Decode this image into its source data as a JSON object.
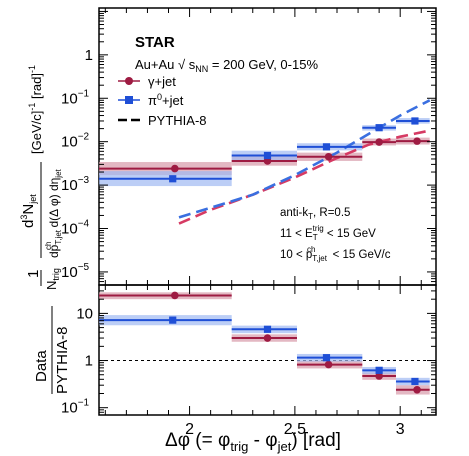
{
  "chart_data": [
    {
      "panel": "main",
      "type": "scatter",
      "experiment": "STAR",
      "system_line": "Au+Au √ s_NN = 200 GeV, 0-15%",
      "ylabel": "(1/N_trig) d³N_jet / (dp^ch_T,jet d(Δφ) dη_jet) [(GeV/c)⁻¹ [rad]⁻¹]",
      "yscale": "log",
      "ylim": [
        5e-06,
        12
      ],
      "xlim": [
        1.57,
        3.17
      ],
      "y_ticks": [
        {
          "v": 1,
          "label": "1"
        },
        {
          "v": 0.1,
          "label": "10",
          "exp": "−1"
        },
        {
          "v": 0.01,
          "label": "10",
          "exp": "−2"
        },
        {
          "v": 0.001,
          "label": "10",
          "exp": "−3"
        },
        {
          "v": 0.0001,
          "label": "10",
          "exp": "−4"
        },
        {
          "v": 1e-05,
          "label": "10",
          "exp": "−5"
        }
      ],
      "legend": [
        {
          "key": "gamma",
          "label": "γ+jet"
        },
        {
          "key": "pi0",
          "label": "π⁰+jet"
        },
        {
          "key": "pythia",
          "label": "PYTHIA-8"
        }
      ],
      "cuts": [
        "anti-k_T, R=0.5",
        "11 < E^trig_T < 15 GeV",
        "10 < p^ch_T,jet < 15 GeV/c"
      ],
      "series": [
        {
          "name": "γ+jet",
          "key": "gamma",
          "color": "#9e1b42",
          "band": "#d79aaa",
          "points": [
            {
              "x": 1.93,
              "xlo": 1.57,
              "xhi": 2.2,
              "y": 0.0024,
              "ylo": 0.0017,
              "yhi": 0.0034
            },
            {
              "x": 2.37,
              "xlo": 2.2,
              "xhi": 2.51,
              "y": 0.0036,
              "ylo": 0.0028,
              "yhi": 0.0047
            },
            {
              "x": 2.66,
              "xlo": 2.51,
              "xhi": 2.82,
              "y": 0.0045,
              "ylo": 0.0036,
              "yhi": 0.0056
            },
            {
              "x": 2.9,
              "xlo": 2.82,
              "xhi": 2.98,
              "y": 0.0098,
              "ylo": 0.0082,
              "yhi": 0.0118
            },
            {
              "x": 3.08,
              "xlo": 2.98,
              "xhi": 3.14,
              "y": 0.0103,
              "ylo": 0.0086,
              "yhi": 0.0124
            }
          ]
        },
        {
          "name": "π⁰+jet",
          "key": "pi0",
          "color": "#1f4fd6",
          "band": "#9fb9f2",
          "points": [
            {
              "x": 1.92,
              "xlo": 1.57,
              "xhi": 2.2,
              "y": 0.0014,
              "ylo": 0.00095,
              "yhi": 0.0021
            },
            {
              "x": 2.37,
              "xlo": 2.2,
              "xhi": 2.51,
              "y": 0.0048,
              "ylo": 0.0037,
              "yhi": 0.0062
            },
            {
              "x": 2.65,
              "xlo": 2.51,
              "xhi": 2.82,
              "y": 0.0076,
              "ylo": 0.0063,
              "yhi": 0.0092
            },
            {
              "x": 2.9,
              "xlo": 2.82,
              "xhi": 2.98,
              "y": 0.021,
              "ylo": 0.018,
              "yhi": 0.024
            },
            {
              "x": 3.07,
              "xlo": 2.98,
              "xhi": 3.14,
              "y": 0.03,
              "ylo": 0.026,
              "yhi": 0.035
            }
          ]
        }
      ],
      "pythia": [
        {
          "key": "gamma",
          "color": "#d63a63",
          "x": [
            1.95,
            2.1,
            2.3,
            2.5,
            2.7,
            2.85,
            3.0,
            3.14
          ],
          "y": [
            0.00013,
            0.00027,
            0.0006,
            0.0015,
            0.0042,
            0.0085,
            0.013,
            0.018
          ]
        },
        {
          "key": "pi0",
          "color": "#3a6fe0",
          "x": [
            1.95,
            2.1,
            2.3,
            2.5,
            2.7,
            2.85,
            3.0,
            3.14
          ],
          "y": [
            0.00018,
            0.0003,
            0.0006,
            0.0017,
            0.0056,
            0.015,
            0.04,
            0.09
          ]
        }
      ]
    },
    {
      "panel": "ratio",
      "type": "scatter",
      "ylabel": "Data / PYTHIA-8",
      "xlabel": "Δφ (= φ_trig - φ_jet) [rad]",
      "yscale": "log",
      "ylim": [
        0.07,
        40
      ],
      "reference_line": 1,
      "y_ticks": [
        {
          "v": 10,
          "label": "10"
        },
        {
          "v": 1,
          "label": "1"
        },
        {
          "v": 0.1,
          "label": "10",
          "exp": "−1"
        }
      ],
      "x_ticks": [
        {
          "v": 2,
          "label": "2"
        },
        {
          "v": 2.5,
          "label": "2.5"
        },
        {
          "v": 3,
          "label": "3"
        }
      ],
      "series": [
        {
          "name": "γ+jet",
          "key": "gamma",
          "color": "#9e1b42",
          "band": "#d79aaa",
          "points": [
            {
              "x": 1.93,
              "xlo": 1.57,
              "xhi": 2.2,
              "y": 24,
              "ylo": 20,
              "yhi": 28
            },
            {
              "x": 2.37,
              "xlo": 2.2,
              "xhi": 2.51,
              "y": 3.0,
              "ylo": 2.5,
              "yhi": 3.6
            },
            {
              "x": 2.66,
              "xlo": 2.51,
              "xhi": 2.82,
              "y": 0.82,
              "ylo": 0.68,
              "yhi": 0.98
            },
            {
              "x": 2.9,
              "xlo": 2.82,
              "xhi": 2.98,
              "y": 0.47,
              "ylo": 0.39,
              "yhi": 0.56
            },
            {
              "x": 3.08,
              "xlo": 2.98,
              "xhi": 3.14,
              "y": 0.24,
              "ylo": 0.19,
              "yhi": 0.3
            }
          ]
        },
        {
          "name": "π⁰+jet",
          "key": "pi0",
          "color": "#1f4fd6",
          "band": "#9fb9f2",
          "points": [
            {
              "x": 1.92,
              "xlo": 1.57,
              "xhi": 2.2,
              "y": 7.2,
              "ylo": 5.6,
              "yhi": 9.2
            },
            {
              "x": 2.37,
              "xlo": 2.2,
              "xhi": 2.51,
              "y": 4.6,
              "ylo": 3.8,
              "yhi": 5.5
            },
            {
              "x": 2.65,
              "xlo": 2.51,
              "xhi": 2.82,
              "y": 1.15,
              "ylo": 0.95,
              "yhi": 1.38
            },
            {
              "x": 2.9,
              "xlo": 2.82,
              "xhi": 2.98,
              "y": 0.62,
              "ylo": 0.52,
              "yhi": 0.73
            },
            {
              "x": 3.07,
              "xlo": 2.98,
              "xhi": 3.14,
              "y": 0.36,
              "ylo": 0.3,
              "yhi": 0.43
            }
          ]
        }
      ]
    }
  ]
}
